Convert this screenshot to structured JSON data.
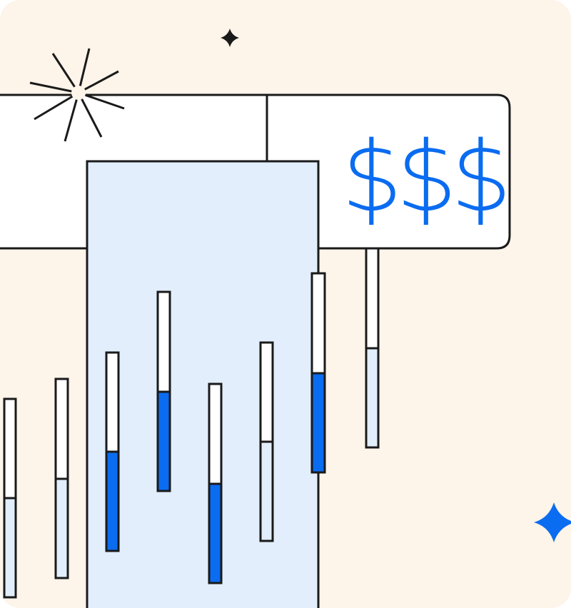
{
  "sign": {
    "text": "$$$"
  },
  "colors": {
    "background": "#fdf4ea",
    "outline": "#1a1a1a",
    "panel_blue": "#e2eefc",
    "accent_blue": "#0a6cf0",
    "white": "#ffffff"
  },
  "bars": [
    {
      "name": "bar-1",
      "fill_fraction": 0.5,
      "fill": "light"
    },
    {
      "name": "bar-2",
      "fill_fraction": 0.5,
      "fill": "light"
    },
    {
      "name": "bar-3",
      "fill_fraction": 0.5,
      "fill": "accent"
    },
    {
      "name": "bar-4",
      "fill_fraction": 0.5,
      "fill": "accent"
    },
    {
      "name": "bar-5",
      "fill_fraction": 0.5,
      "fill": "accent"
    },
    {
      "name": "bar-6",
      "fill_fraction": 0.5,
      "fill": "light"
    },
    {
      "name": "bar-7",
      "fill_fraction": 0.5,
      "fill": "accent"
    },
    {
      "name": "bar-8",
      "fill_fraction": 0.5,
      "fill": "light"
    }
  ],
  "icons": [
    "sparkle-burst-icon",
    "small-star-icon",
    "blue-star-icon"
  ]
}
